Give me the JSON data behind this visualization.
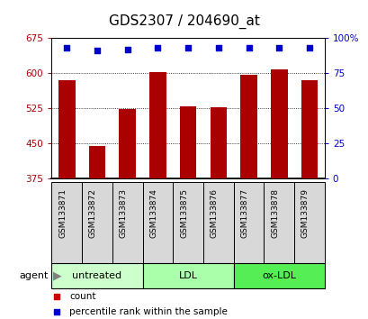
{
  "title": "GDS2307 / 204690_at",
  "samples": [
    "GSM133871",
    "GSM133872",
    "GSM133873",
    "GSM133874",
    "GSM133875",
    "GSM133876",
    "GSM133877",
    "GSM133878",
    "GSM133879"
  ],
  "counts": [
    585,
    445,
    523,
    602,
    530,
    527,
    597,
    608,
    585
  ],
  "percentiles": [
    93,
    91,
    92,
    93,
    93,
    93,
    93,
    93,
    93
  ],
  "ylim_left": [
    375,
    675
  ],
  "ylim_right": [
    0,
    100
  ],
  "yticks_left": [
    375,
    450,
    525,
    600,
    675
  ],
  "yticks_right": [
    0,
    25,
    50,
    75,
    100
  ],
  "ytick_labels_right": [
    "0",
    "25",
    "50",
    "75",
    "100%"
  ],
  "bar_color": "#aa0000",
  "dot_color": "#0000cc",
  "groups": [
    {
      "label": "untreated",
      "indices": [
        0,
        1,
        2
      ],
      "color": "#ccffcc"
    },
    {
      "label": "LDL",
      "indices": [
        3,
        4,
        5
      ],
      "color": "#aaffaa"
    },
    {
      "label": "ox-LDL",
      "indices": [
        6,
        7,
        8
      ],
      "color": "#55ee55"
    }
  ],
  "agent_label": "agent",
  "legend_items": [
    {
      "label": "count",
      "color": "#cc0000",
      "marker": "s"
    },
    {
      "label": "percentile rank within the sample",
      "color": "#0000cc",
      "marker": "s"
    }
  ],
  "bar_color_hex": "#aa0000",
  "dot_color_hex": "#0000cc",
  "sample_box_color": "#d8d8d8",
  "bar_width": 0.55,
  "title_fontsize": 11,
  "axis_tick_fontsize": 7.5,
  "sample_label_fontsize": 6.5,
  "group_label_fontsize": 8,
  "legend_fontsize": 7.5
}
